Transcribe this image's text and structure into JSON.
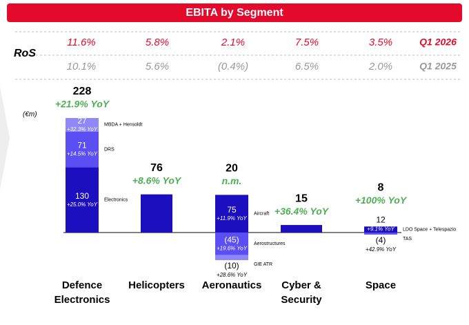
{
  "chart_data": {
    "type": "bar",
    "title": "EBITA by Segment",
    "unit_label": "(€m)",
    "ros": {
      "label": "RoS",
      "rows": [
        {
          "period": "Q1 2026",
          "values": [
            "11.6%",
            "5.8%",
            "2.1%",
            "7.5%",
            "3.5%"
          ]
        },
        {
          "period": "Q1 2025",
          "values": [
            "10.1%",
            "5.6%",
            "(0.4%)",
            "6.5%",
            "2.0%"
          ]
        }
      ]
    },
    "colors": [
      "#1c0fc0",
      "#5b4ef2",
      "#9088f6"
    ],
    "categories": [
      {
        "name": "Defence Electronics",
        "total": 228,
        "total_yoy": "+21.9% YoY",
        "segments": [
          {
            "name": "Electronics",
            "value": 130,
            "yoy": "+25.0% YoY"
          },
          {
            "name": "DRS",
            "value": 71,
            "yoy": "+14.5% YoY"
          },
          {
            "name": "MBDA + Hensoldt",
            "value": 27,
            "yoy": "+32.3% YoY"
          }
        ]
      },
      {
        "name": "Helicopters",
        "total": 76,
        "total_yoy": "+8.6% YoY",
        "segments": []
      },
      {
        "name": "Aeronautics",
        "total": 20,
        "total_yoy": "n.m.",
        "segments": [
          {
            "name": "Aircraft",
            "value": 75,
            "yoy": "+11.9% YoY"
          },
          {
            "name": "Aerostructures",
            "value": -45,
            "value_label": "(45)",
            "yoy": "+19.6% YoY"
          },
          {
            "name": "GIE ATR",
            "value": -10,
            "value_label": "(10)",
            "yoy": "+28.6% YoY"
          }
        ]
      },
      {
        "name": "Cyber & Security",
        "total": 15,
        "total_yoy": "+36.4% YoY",
        "segments": []
      },
      {
        "name": "Space",
        "total": 8,
        "total_yoy": "+100% YoY",
        "segments": [
          {
            "name": "LDO Space + Telespazio",
            "value": 12,
            "yoy": "+9.1% YoY"
          },
          {
            "name": "TAS",
            "value": -4,
            "value_label": "(4)",
            "yoy": "+42.9% YoY"
          }
        ]
      }
    ]
  }
}
